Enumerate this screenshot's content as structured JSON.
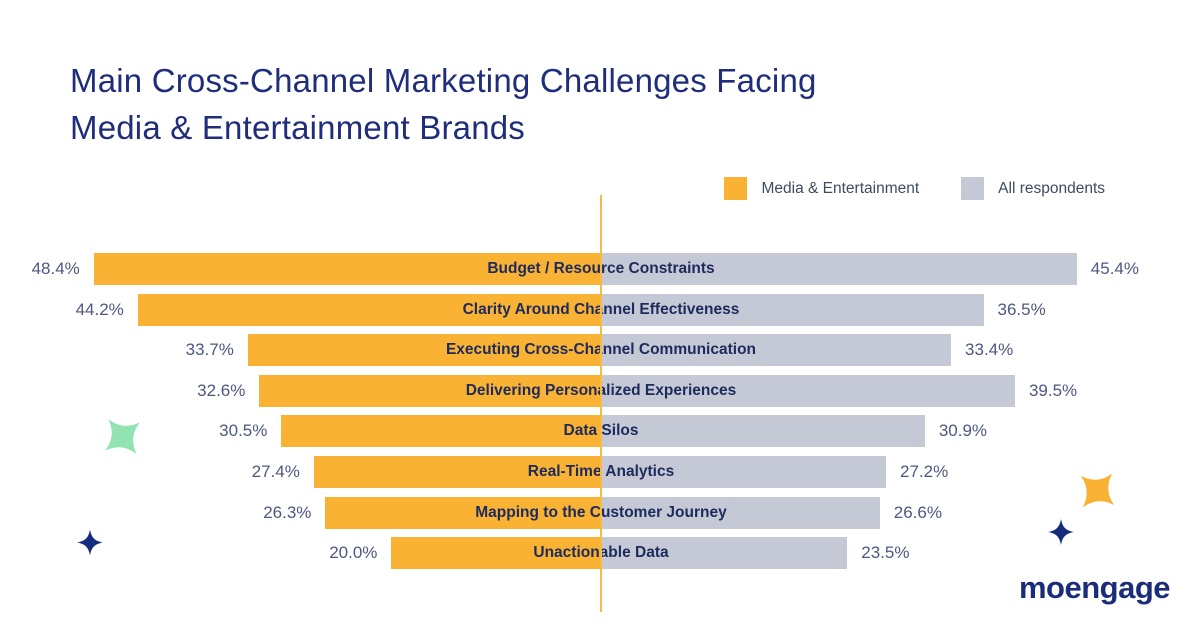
{
  "title": {
    "line1": "Main Cross-Channel Marketing Challenges Facing",
    "line2": "Media & Entertainment Brands"
  },
  "legend": [
    {
      "label": "Media & Entertainment",
      "color": "#F9B234"
    },
    {
      "label": "All respondents",
      "color": "#C4C9D5"
    }
  ],
  "chart_data": {
    "type": "bar",
    "variant": "diverging-horizontal-butterfly",
    "title": "Main Cross-Channel Marketing Challenges Facing Media & Entertainment Brands",
    "categories": [
      "Budget / Resource Constraints",
      "Clarity Around Channel Effectiveness",
      "Executing Cross-Channel Communication",
      "Delivering Personalized Experiences",
      "Data Silos",
      "Real-Time Analytics",
      "Mapping to the Customer Journey",
      "Unactionable Data"
    ],
    "series": [
      {
        "name": "Media & Entertainment",
        "side": "left",
        "color": "#F9B234",
        "values": [
          48.4,
          44.2,
          33.7,
          32.6,
          30.5,
          27.4,
          26.3,
          20.0
        ]
      },
      {
        "name": "All respondents",
        "side": "right",
        "color": "#C4C9D5",
        "values": [
          45.4,
          36.5,
          33.4,
          39.5,
          30.9,
          27.2,
          26.6,
          23.5
        ]
      }
    ],
    "value_format": "one-decimal-percent",
    "xlim": [
      0,
      50
    ],
    "grid": false,
    "legend_position": "top-right"
  },
  "decorations": {
    "center_line_color": "#F7BA47",
    "sparkle_green": "#92E2B2",
    "sparkle_orange": "#F9B234",
    "sparkle_navy": "#152C7E"
  },
  "logo": {
    "text": "moengage"
  }
}
